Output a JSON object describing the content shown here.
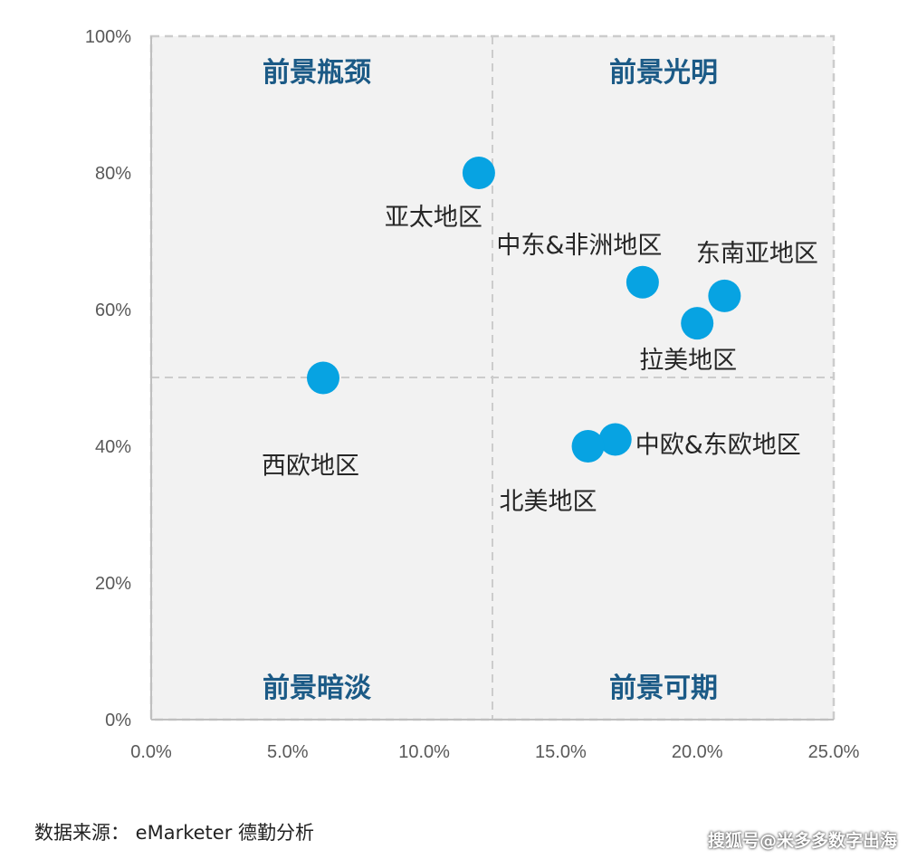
{
  "chart_data": {
    "type": "scatter",
    "xlim": [
      0,
      25
    ],
    "ylim": [
      0,
      100
    ],
    "x_ticks": [
      "0.0%",
      "5.0%",
      "10.0%",
      "15.0%",
      "20.0%",
      "25.0%"
    ],
    "y_ticks": [
      "0%",
      "20%",
      "40%",
      "60%",
      "80%",
      "100%"
    ],
    "divider_x": 12.5,
    "divider_y": 50,
    "grid": false,
    "colors": {
      "point": "#07a3e2",
      "plot_bg": "#f2f2f2",
      "divider": "#cccccc",
      "quadrant_text": "#1b5a86"
    },
    "quadrants": {
      "top_left": "前景瓶颈",
      "top_right": "前景光明",
      "bottom_left": "前景暗淡",
      "bottom_right": "前景可期"
    },
    "points": [
      {
        "label": "亚太地区",
        "x": 12.0,
        "y": 80
      },
      {
        "label": "中东&非洲地区",
        "x": 18.0,
        "y": 64
      },
      {
        "label": "东南亚地区",
        "x": 21.0,
        "y": 62
      },
      {
        "label": "拉美地区",
        "x": 20.0,
        "y": 58
      },
      {
        "label": "西欧地区",
        "x": 6.3,
        "y": 50
      },
      {
        "label": "中欧&东欧地区",
        "x": 17.0,
        "y": 41
      },
      {
        "label": "北美地区",
        "x": 16.0,
        "y": 40
      }
    ]
  },
  "source": "数据来源：  eMarketer 德勤分析",
  "watermark": "搜狐号@米多多数字出海"
}
